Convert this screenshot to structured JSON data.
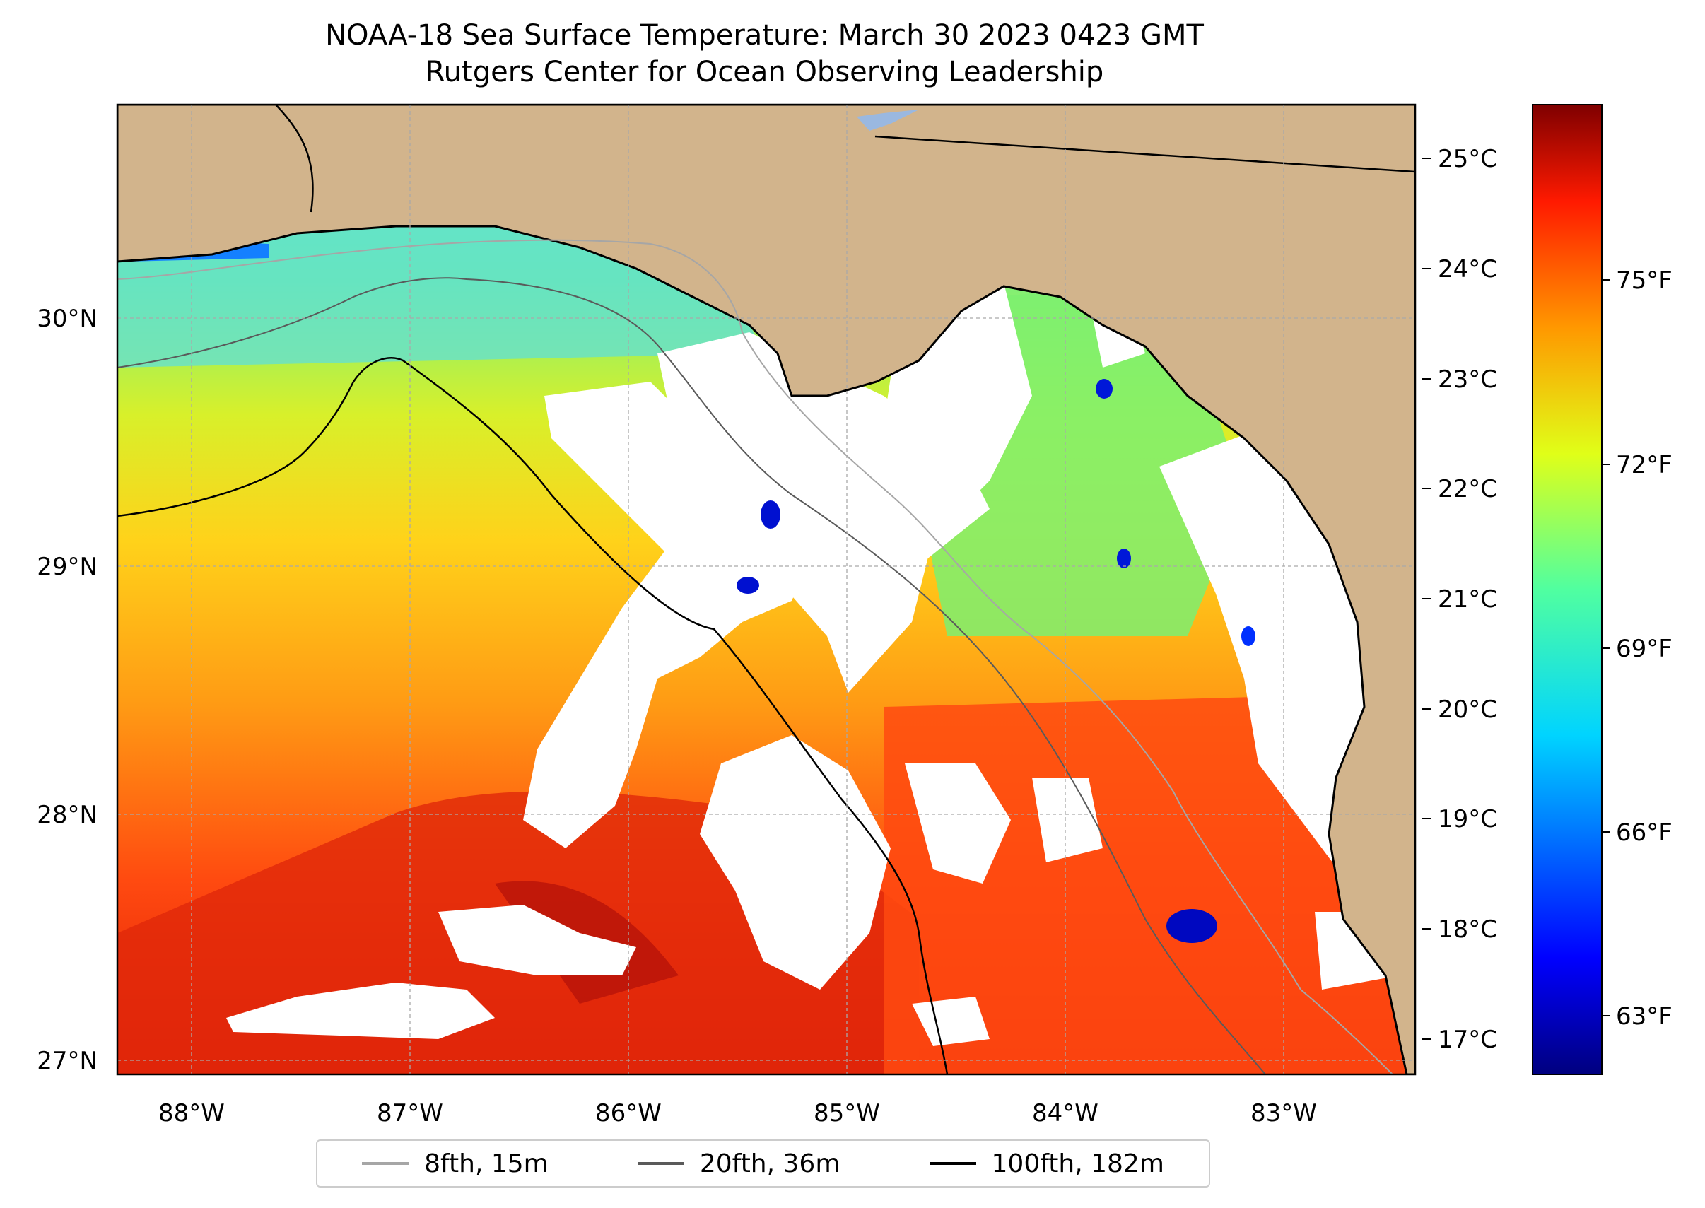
{
  "title": "NOAA-18 Sea Surface Temperature: March 30 2023 0423 GMT",
  "subtitle": "Rutgers Center for Ocean Observing Leadership",
  "colors": {
    "land": "#d2b48c",
    "cloud": "#ffffff",
    "grid": "#a9a9a9",
    "coast": "#000000"
  },
  "axes": {
    "longitude_ticks": [
      "88°W",
      "87°W",
      "86°W",
      "85°W",
      "84°W",
      "83°W"
    ],
    "latitude_ticks": [
      "30°N",
      "29°N",
      "28°N",
      "27°N"
    ]
  },
  "colorbar": {
    "colormap": "jet",
    "celsius_ticks": [
      "25°C",
      "24°C",
      "23°C",
      "22°C",
      "21°C",
      "20°C",
      "19°C",
      "18°C",
      "17°C"
    ],
    "fahrenheit_ticks": [
      "75°F",
      "72°F",
      "69°F",
      "66°F",
      "63°F"
    ]
  },
  "legend": [
    {
      "label": "8fth, 15m",
      "color": "#a6a6a6"
    },
    {
      "label": "20fth, 36m",
      "color": "#5a5a5a"
    },
    {
      "label": "100fth, 182m",
      "color": "#000000"
    }
  ]
}
